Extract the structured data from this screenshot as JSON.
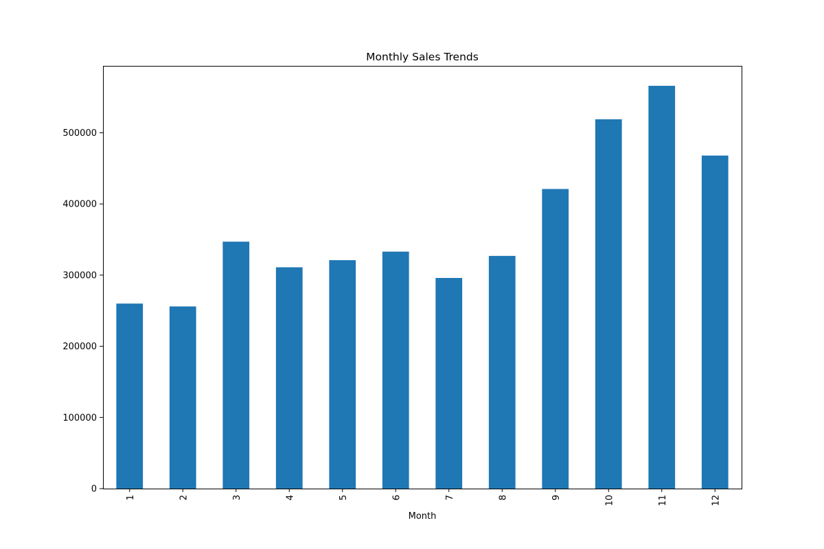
{
  "chart_data": {
    "type": "bar",
    "title": "Monthly Sales Trends",
    "xlabel": "Month",
    "ylabel": "",
    "categories": [
      "1",
      "2",
      "3",
      "4",
      "5",
      "6",
      "7",
      "8",
      "9",
      "10",
      "11",
      "12"
    ],
    "values": [
      260000,
      256000,
      347000,
      311000,
      321000,
      333000,
      296000,
      327000,
      421000,
      519000,
      566000,
      468000
    ],
    "ylim": [
      0,
      594000
    ],
    "yticks": [
      0,
      100000,
      200000,
      300000,
      400000,
      500000
    ],
    "ytick_labels": [
      "0",
      "100000",
      "200000",
      "300000",
      "400000",
      "500000"
    ],
    "bar_color": "#1f77b4",
    "grid": false,
    "legend": false
  }
}
